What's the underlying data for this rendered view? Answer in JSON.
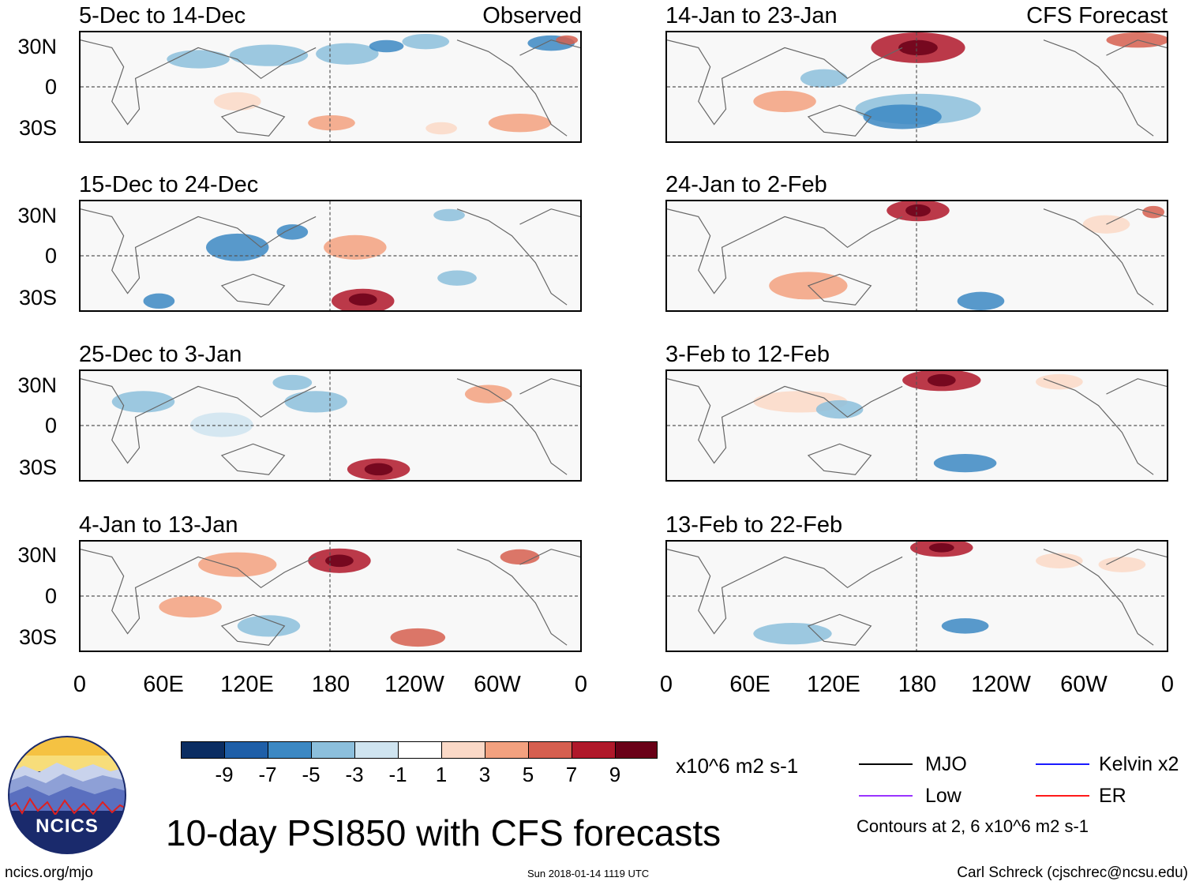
{
  "panels_left": [
    {
      "title": "5-Dec to 14-Dec",
      "tag": "Observed"
    },
    {
      "title": "15-Dec to 24-Dec",
      "tag": ""
    },
    {
      "title": "25-Dec to 3-Jan",
      "tag": ""
    },
    {
      "title": "4-Jan to 13-Jan",
      "tag": ""
    }
  ],
  "panels_right": [
    {
      "title": "14-Jan to 23-Jan",
      "tag": "CFS Forecast"
    },
    {
      "title": "24-Jan to 2-Feb",
      "tag": ""
    },
    {
      "title": "3-Feb to 12-Feb",
      "tag": ""
    },
    {
      "title": "13-Feb to 22-Feb",
      "tag": ""
    }
  ],
  "lat_labels": [
    "30N",
    "0",
    "30S"
  ],
  "lon_labels": [
    "0",
    "60E",
    "120E",
    "180",
    "120W",
    "60W",
    "0"
  ],
  "colorbar": {
    "colors": [
      "#0b2d62",
      "#1f5fa8",
      "#3c88c3",
      "#8cbfdc",
      "#cfe4f0",
      "#ffffff",
      "#fbd9c7",
      "#f3a17f",
      "#d65f4f",
      "#b0182a",
      "#6a0017"
    ],
    "labels": [
      "-9",
      "-7",
      "-5",
      "-3",
      "-1",
      "1",
      "3",
      "5",
      "7",
      "9"
    ],
    "units": "x10^6 m2 s-1"
  },
  "legend": {
    "items": [
      {
        "label": "MJO",
        "color": "#000000"
      },
      {
        "label": "Kelvin x2",
        "color": "#1a1aff"
      },
      {
        "label": "Low",
        "color": "#9933ff"
      },
      {
        "label": "ER",
        "color": "#ff1a1a"
      }
    ],
    "note": "Contours at 2, 6 x10^6 m2 s-1"
  },
  "logo": {
    "text": "NCICS"
  },
  "main_title": "10-day PSI850 with CFS forecasts",
  "footer": {
    "left": "ncics.org/mjo",
    "center": "Sun 2018-01-14 1119 UTC",
    "right": "Carl Schreck (cjschrec@ncsu.edu)"
  }
}
